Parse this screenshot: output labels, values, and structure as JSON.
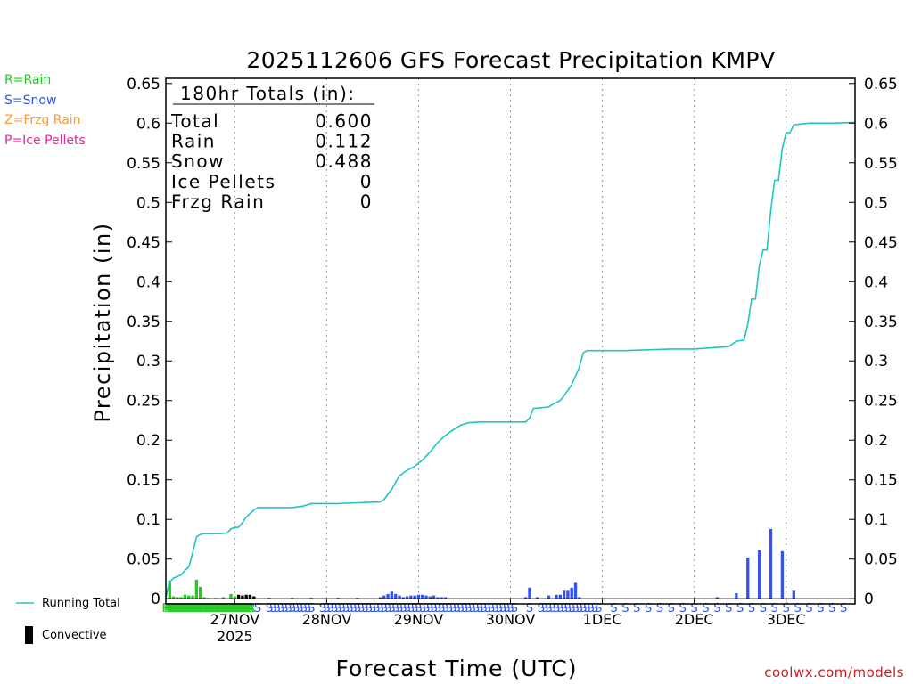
{
  "chart_data": {
    "type": "bar",
    "title": "2025112606 GFS Forecast Precipitation KMPV",
    "xlabel": "Forecast Time (UTC)",
    "ylabel": "Precipitation (in)",
    "ylim": [
      -0.0065,
      0.6565
    ],
    "xlim_hours": [
      0,
      180
    ],
    "yticks": [
      0,
      0.05,
      0.1,
      0.15,
      0.2,
      0.25,
      0.3,
      0.35,
      0.4,
      0.45,
      0.5,
      0.55,
      0.6,
      0.65
    ],
    "ytick_labels": [
      "0",
      "0.05",
      "0.1",
      "0.15",
      "0.2",
      "0.25",
      "0.3",
      "0.35",
      "0.4",
      "0.45",
      "0.5",
      "0.55",
      "0.6",
      "0.65"
    ],
    "date_ticks": [
      {
        "hour": 18,
        "label": "27NOV"
      },
      {
        "hour": 42,
        "label": "28NOV"
      },
      {
        "hour": 66,
        "label": "29NOV"
      },
      {
        "hour": 90,
        "label": "30NOV"
      },
      {
        "hour": 114,
        "label": "1DEC"
      },
      {
        "hour": 138,
        "label": "2DEC"
      },
      {
        "hour": 162,
        "label": "3DEC"
      }
    ],
    "year_label": "2025",
    "totals_box": {
      "header": "180hr Totals (in):",
      "rows": [
        {
          "label": "Total",
          "value": "0.600"
        },
        {
          "label": "Rain",
          "value": "0.112"
        },
        {
          "label": "Snow",
          "value": "0.488"
        },
        {
          "label": "Ice Pellets",
          "value": "0"
        },
        {
          "label": "Frzg Rain",
          "value": "0"
        }
      ]
    },
    "ptype_legend": [
      {
        "label": "R=Rain",
        "color": "#22cc22"
      },
      {
        "label": "S=Snow",
        "color": "#3355ee"
      },
      {
        "label": "Z=Frzg Rain",
        "color": "#ff9933"
      },
      {
        "label": "P=Ice Pellets",
        "color": "#ee2299"
      }
    ],
    "series": [
      {
        "name": "Running Total",
        "type": "line",
        "color": "#22c4c4",
        "points": [
          [
            0,
            0.0
          ],
          [
            0.5,
            0.013
          ],
          [
            1,
            0.021
          ],
          [
            2,
            0.026
          ],
          [
            3,
            0.028
          ],
          [
            4,
            0.03
          ],
          [
            5,
            0.036
          ],
          [
            6,
            0.04
          ],
          [
            7,
            0.058
          ],
          [
            8,
            0.078
          ],
          [
            9,
            0.081
          ],
          [
            10,
            0.082
          ],
          [
            12,
            0.082
          ],
          [
            14,
            0.082
          ],
          [
            16,
            0.083
          ],
          [
            17,
            0.088
          ],
          [
            18,
            0.09
          ],
          [
            19,
            0.09
          ],
          [
            20,
            0.096
          ],
          [
            21,
            0.103
          ],
          [
            23,
            0.112
          ],
          [
            24,
            0.115
          ],
          [
            27,
            0.115
          ],
          [
            33,
            0.115
          ],
          [
            36,
            0.117
          ],
          [
            38,
            0.12
          ],
          [
            45,
            0.12
          ],
          [
            50,
            0.121
          ],
          [
            56,
            0.122
          ],
          [
            57,
            0.125
          ],
          [
            58,
            0.132
          ],
          [
            59,
            0.138
          ],
          [
            60,
            0.147
          ],
          [
            61,
            0.155
          ],
          [
            63,
            0.162
          ],
          [
            65,
            0.167
          ],
          [
            67,
            0.175
          ],
          [
            69,
            0.185
          ],
          [
            71,
            0.197
          ],
          [
            73,
            0.206
          ],
          [
            75,
            0.213
          ],
          [
            77,
            0.219
          ],
          [
            79,
            0.222
          ],
          [
            82,
            0.223
          ],
          [
            88,
            0.223
          ],
          [
            94,
            0.223
          ],
          [
            95,
            0.228
          ],
          [
            96,
            0.24
          ],
          [
            98,
            0.241
          ],
          [
            100,
            0.242
          ],
          [
            101,
            0.245
          ],
          [
            103,
            0.25
          ],
          [
            104,
            0.256
          ],
          [
            106,
            0.27
          ],
          [
            108,
            0.292
          ],
          [
            109,
            0.31
          ],
          [
            110,
            0.313
          ],
          [
            114,
            0.313
          ],
          [
            120,
            0.313
          ],
          [
            126,
            0.314
          ],
          [
            132,
            0.315
          ],
          [
            138,
            0.315
          ],
          [
            144,
            0.317
          ],
          [
            147,
            0.318
          ],
          [
            149,
            0.325
          ],
          [
            151,
            0.326
          ],
          [
            152,
            0.347
          ],
          [
            153,
            0.378
          ],
          [
            154,
            0.378
          ],
          [
            155,
            0.42
          ],
          [
            156,
            0.44
          ],
          [
            157,
            0.44
          ],
          [
            158,
            0.49
          ],
          [
            159,
            0.528
          ],
          [
            160,
            0.528
          ],
          [
            161,
            0.568
          ],
          [
            162,
            0.588
          ],
          [
            163,
            0.588
          ],
          [
            164,
            0.598
          ],
          [
            166,
            0.599
          ],
          [
            168,
            0.6
          ],
          [
            174,
            0.6
          ],
          [
            180,
            0.601
          ]
        ]
      },
      {
        "name": "Rain",
        "type": "bar",
        "color": "#22cc22",
        "points": [
          [
            1,
            0.023
          ],
          [
            2,
            0.003
          ],
          [
            3,
            0.002
          ],
          [
            4,
            0.002
          ],
          [
            5,
            0.005
          ],
          [
            6,
            0.004
          ],
          [
            7,
            0.004
          ],
          [
            8,
            0.024
          ],
          [
            9,
            0.015
          ],
          [
            10,
            0.002
          ],
          [
            11,
            0.001
          ],
          [
            13,
            0.001
          ],
          [
            15,
            0.002
          ],
          [
            17,
            0.006
          ],
          [
            18,
            0.003
          ],
          [
            19,
            0.002
          ]
        ]
      },
      {
        "name": "Snow",
        "type": "bar",
        "color": "#3355ee",
        "points": [
          [
            56,
            0.002
          ],
          [
            57,
            0.004
          ],
          [
            58,
            0.006
          ],
          [
            59,
            0.009
          ],
          [
            60,
            0.006
          ],
          [
            61,
            0.004
          ],
          [
            62,
            0.002
          ],
          [
            63,
            0.003
          ],
          [
            64,
            0.004
          ],
          [
            65,
            0.004
          ],
          [
            66,
            0.005
          ],
          [
            67,
            0.005
          ],
          [
            68,
            0.004
          ],
          [
            69,
            0.003
          ],
          [
            70,
            0.004
          ],
          [
            71,
            0.002
          ],
          [
            72,
            0.002
          ],
          [
            73,
            0.002
          ],
          [
            94,
            0.002
          ],
          [
            95,
            0.014
          ],
          [
            97,
            0.002
          ],
          [
            100,
            0.004
          ],
          [
            102,
            0.005
          ],
          [
            103,
            0.005
          ],
          [
            104,
            0.01
          ],
          [
            105,
            0.01
          ],
          [
            106,
            0.014
          ],
          [
            107,
            0.02
          ],
          [
            108,
            0.002
          ],
          [
            144,
            0.002
          ],
          [
            149,
            0.007
          ],
          [
            152,
            0.052
          ],
          [
            155,
            0.061
          ],
          [
            158,
            0.088
          ],
          [
            161,
            0.06
          ],
          [
            164,
            0.01
          ]
        ]
      },
      {
        "name": "Convective",
        "type": "bar",
        "color": "#000000",
        "points": [
          [
            19,
            0.005
          ],
          [
            20,
            0.004
          ],
          [
            21,
            0.005
          ],
          [
            22,
            0.005
          ],
          [
            23,
            0.003
          ],
          [
            27,
            0.001
          ],
          [
            33,
            0.001
          ],
          [
            38,
            0.001
          ],
          [
            45,
            0.001
          ],
          [
            50,
            0.001
          ]
        ]
      }
    ],
    "ptype_strip": [
      {
        "type": "R",
        "color": "#22cc22",
        "hours": [
          0,
          0.4,
          0.8,
          1.2,
          1.6,
          2,
          2.4,
          2.8,
          3.2,
          3.6,
          4,
          4.4,
          4.8,
          5.2,
          5.6,
          6,
          6.4,
          6.8,
          7.2,
          7.6,
          8,
          8.4,
          8.8,
          9.2,
          9.6,
          10,
          10.4,
          10.8,
          11.2,
          11.6,
          12,
          12.4,
          12.8,
          13.2,
          13.6,
          14,
          14.4,
          14.8,
          15.2,
          15.6,
          16,
          16.4,
          16.8,
          17.2,
          17.6,
          18,
          18.4,
          18.8,
          19.2,
          19.6,
          20,
          20.4,
          20.8,
          21.2,
          21.6,
          22,
          22.4
        ]
      },
      {
        "type": "S",
        "color": "#3355ee",
        "hours": [
          24,
          27,
          28,
          29,
          30,
          31,
          32,
          33,
          34,
          35,
          36,
          37,
          38,
          41,
          42,
          43,
          44,
          45,
          46,
          47,
          48,
          49,
          50,
          51,
          52,
          53,
          54,
          55,
          56,
          57,
          58,
          59,
          60,
          61,
          62,
          63,
          64,
          65,
          66,
          67,
          68,
          69,
          70,
          71,
          72,
          73,
          74,
          75,
          76,
          77,
          78,
          79,
          80,
          81,
          82,
          83,
          84,
          85,
          86,
          87,
          88,
          89,
          90,
          91,
          95,
          98,
          99,
          100,
          101,
          102,
          103,
          104,
          105,
          106,
          107,
          108,
          109,
          110,
          111,
          112,
          113,
          117,
          120,
          123,
          126,
          129,
          132,
          135,
          138,
          141,
          144,
          147,
          150,
          153,
          156,
          159,
          162,
          165,
          168,
          171,
          174,
          177
        ]
      }
    ]
  },
  "legend": {
    "running_total": "Running Total",
    "convective": "Convective"
  },
  "credit": "coolwx.com/models"
}
